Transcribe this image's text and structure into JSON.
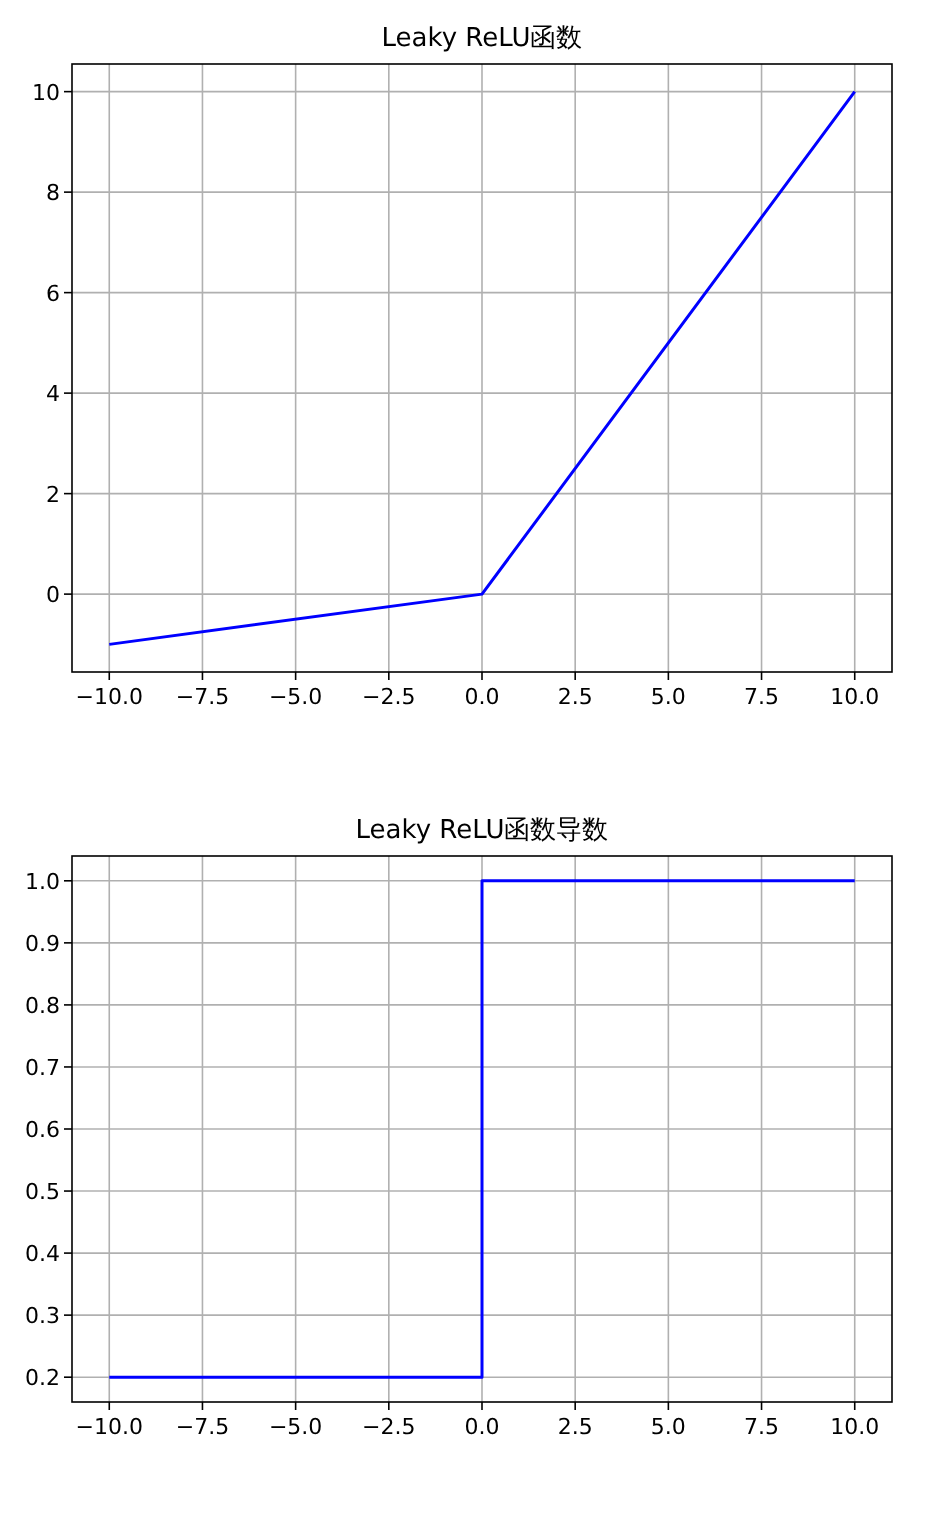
{
  "chart_data": [
    {
      "type": "line",
      "title": "Leaky ReLU函数",
      "xlim": [
        -11,
        11
      ],
      "ylim": [
        -1.55,
        10.55
      ],
      "xticks": [
        {
          "value": -10,
          "label": "−10.0"
        },
        {
          "value": -7.5,
          "label": "−7.5"
        },
        {
          "value": -5,
          "label": "−5.0"
        },
        {
          "value": -2.5,
          "label": "−2.5"
        },
        {
          "value": 0,
          "label": "0.0"
        },
        {
          "value": 2.5,
          "label": "2.5"
        },
        {
          "value": 5,
          "label": "5.0"
        },
        {
          "value": 7.5,
          "label": "7.5"
        },
        {
          "value": 10,
          "label": "10.0"
        }
      ],
      "yticks": [
        0,
        2,
        4,
        6,
        8,
        10
      ],
      "grid": true,
      "series": [
        {
          "color": "#0000ff",
          "x": [
            -10,
            0,
            10
          ],
          "values": [
            -1,
            0,
            10
          ]
        }
      ]
    },
    {
      "type": "line",
      "title": "Leaky ReLU函数导数",
      "xlim": [
        -11,
        11
      ],
      "ylim": [
        0.16,
        1.04
      ],
      "xticks": [
        {
          "value": -10,
          "label": "−10.0"
        },
        {
          "value": -7.5,
          "label": "−7.5"
        },
        {
          "value": -5,
          "label": "−5.0"
        },
        {
          "value": -2.5,
          "label": "−2.5"
        },
        {
          "value": 0,
          "label": "0.0"
        },
        {
          "value": 2.5,
          "label": "2.5"
        },
        {
          "value": 5,
          "label": "5.0"
        },
        {
          "value": 7.5,
          "label": "7.5"
        },
        {
          "value": 10,
          "label": "10.0"
        }
      ],
      "yticks": [
        0.2,
        0.3,
        0.4,
        0.5,
        0.6,
        0.7,
        0.8,
        0.9,
        {
          "value": 1,
          "label": "1.0"
        }
      ],
      "grid": true,
      "series": [
        {
          "color": "#0000ff",
          "x": [
            -10,
            0,
            0,
            10
          ],
          "values": [
            0.2,
            0.2,
            1,
            1
          ]
        }
      ]
    }
  ]
}
